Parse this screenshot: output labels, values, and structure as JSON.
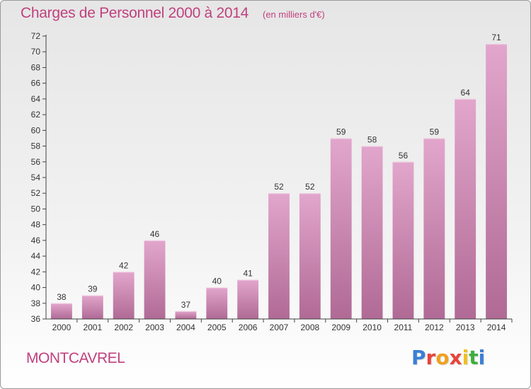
{
  "header": {
    "title": "Charges de Personnel 2000 à 2014",
    "subtitle": "(en milliers d'€)"
  },
  "footer": {
    "commune": "MONTCAVREL",
    "logo_text": "Proxiti",
    "logo_colors": [
      "#3a7fd5",
      "#e8443a",
      "#f0a020",
      "#e8443a",
      "#f0c020",
      "#3fae3f",
      "#3a7fd5"
    ]
  },
  "colors": {
    "accent": "#c0417f",
    "bar_top": "#e2a6cc",
    "bar_bottom": "#b06a95"
  },
  "chart_data": {
    "type": "bar",
    "categories": [
      "2000",
      "2001",
      "2002",
      "2003",
      "2004",
      "2005",
      "2006",
      "2007",
      "2008",
      "2009",
      "2010",
      "2011",
      "2012",
      "2013",
      "2014"
    ],
    "values": [
      38,
      39,
      42,
      46,
      37,
      40,
      41,
      52,
      52,
      59,
      58,
      56,
      59,
      64,
      71
    ],
    "ylim": [
      36,
      72
    ],
    "yticks": [
      36,
      38,
      40,
      42,
      44,
      46,
      48,
      50,
      52,
      54,
      56,
      58,
      60,
      62,
      64,
      66,
      68,
      70,
      72
    ],
    "grid": false,
    "data_labels": true
  }
}
